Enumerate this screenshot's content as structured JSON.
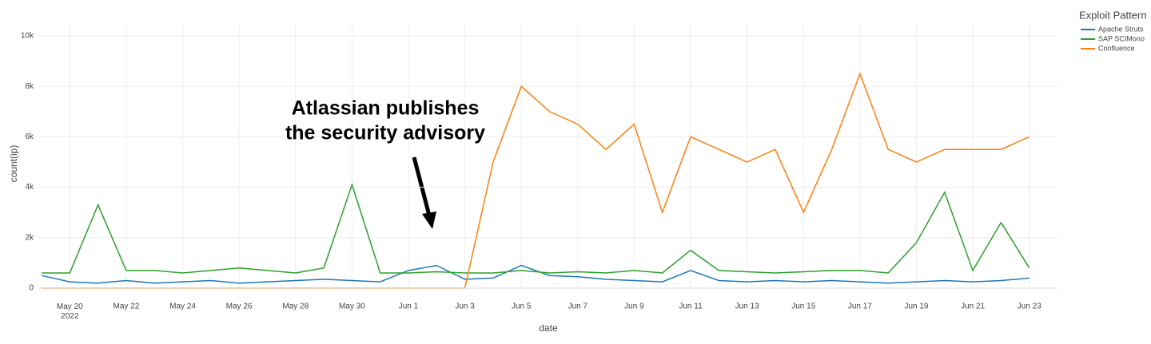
{
  "chart_data": {
    "type": "line",
    "x_label": "date",
    "y_label": "count(ip)",
    "legend_title": "Exploit Pattern",
    "legend_position": "top-right",
    "annotation": {
      "lines": [
        "Atlassian publishes",
        "the security advisory"
      ],
      "x": "2022-06-02",
      "y": 2400
    },
    "xlim": [
      "2022-05-19",
      "2022-06-24"
    ],
    "xticks": [
      {
        "value": "2022-05-20",
        "label": "May 20\n2022"
      },
      {
        "value": "2022-05-22",
        "label": "May 22"
      },
      {
        "value": "2022-05-24",
        "label": "May 24"
      },
      {
        "value": "2022-05-26",
        "label": "May 26"
      },
      {
        "value": "2022-05-28",
        "label": "May 28"
      },
      {
        "value": "2022-05-30",
        "label": "May 30"
      },
      {
        "value": "2022-06-01",
        "label": "Jun 1"
      },
      {
        "value": "2022-06-03",
        "label": "Jun 3"
      },
      {
        "value": "2022-06-05",
        "label": "Jun 5"
      },
      {
        "value": "2022-06-07",
        "label": "Jun 7"
      },
      {
        "value": "2022-06-09",
        "label": "Jun 9"
      },
      {
        "value": "2022-06-11",
        "label": "Jun 11"
      },
      {
        "value": "2022-06-13",
        "label": "Jun 13"
      },
      {
        "value": "2022-06-15",
        "label": "Jun 15"
      },
      {
        "value": "2022-06-17",
        "label": "Jun 17"
      },
      {
        "value": "2022-06-19",
        "label": "Jun 19"
      },
      {
        "value": "2022-06-21",
        "label": "Jun 21"
      },
      {
        "value": "2022-06-23",
        "label": "Jun 23"
      }
    ],
    "ylim": [
      0,
      10000
    ],
    "yticks": [
      0,
      {
        "value": 2000,
        "label": "2k"
      },
      {
        "value": 4000,
        "label": "4k"
      },
      {
        "value": 6000,
        "label": "6k"
      },
      {
        "value": 8000,
        "label": "8k"
      },
      {
        "value": 10000,
        "label": "10k"
      }
    ],
    "grid": true,
    "x": [
      "2022-05-19",
      "2022-05-20",
      "2022-05-21",
      "2022-05-22",
      "2022-05-23",
      "2022-05-24",
      "2022-05-25",
      "2022-05-26",
      "2022-05-27",
      "2022-05-28",
      "2022-05-29",
      "2022-05-30",
      "2022-05-31",
      "2022-06-01",
      "2022-06-02",
      "2022-06-03",
      "2022-06-04",
      "2022-06-05",
      "2022-06-06",
      "2022-06-07",
      "2022-06-08",
      "2022-06-09",
      "2022-06-10",
      "2022-06-11",
      "2022-06-12",
      "2022-06-13",
      "2022-06-14",
      "2022-06-15",
      "2022-06-16",
      "2022-06-17",
      "2022-06-18",
      "2022-06-19",
      "2022-06-20",
      "2022-06-21",
      "2022-06-22",
      "2022-06-23"
    ],
    "series": [
      {
        "name": "Apache Struts",
        "color": "#1f77b4",
        "values": [
          500,
          250,
          200,
          300,
          200,
          250,
          300,
          200,
          250,
          300,
          350,
          300,
          250,
          700,
          900,
          350,
          400,
          900,
          500,
          450,
          350,
          300,
          250,
          700,
          300,
          250,
          300,
          250,
          300,
          250,
          200,
          250,
          300,
          250,
          300,
          400
        ]
      },
      {
        "name": "SAP SCIMono",
        "color": "#2ca02c",
        "values": [
          600,
          600,
          3300,
          700,
          700,
          600,
          700,
          800,
          700,
          600,
          800,
          4100,
          600,
          600,
          650,
          600,
          600,
          700,
          600,
          650,
          600,
          700,
          600,
          1500,
          700,
          650,
          600,
          650,
          700,
          700,
          600,
          1800,
          3800,
          700,
          2600,
          800
        ]
      },
      {
        "name": "Confluence",
        "color": "#ff7f0e",
        "values": [
          0,
          0,
          0,
          0,
          0,
          0,
          0,
          0,
          0,
          0,
          0,
          0,
          0,
          0,
          0,
          0,
          5000,
          8000,
          7000,
          6500,
          5500,
          6500,
          3000,
          6000,
          5500,
          5000,
          5500,
          3000,
          5500,
          8500,
          5500,
          5000,
          5500,
          5500,
          5500,
          6000
        ]
      }
    ]
  }
}
